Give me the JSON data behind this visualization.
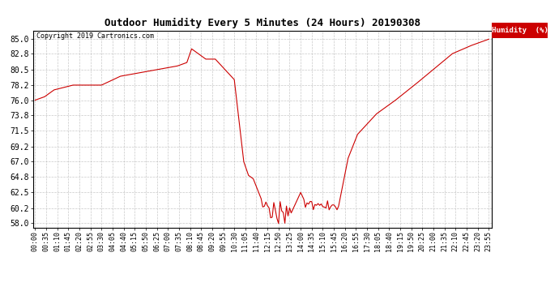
{
  "title": "Outdoor Humidity Every 5 Minutes (24 Hours) 20190308",
  "copyright_text": "Copyright 2019 Cartronics.com",
  "legend_label": "Humidity  (%)",
  "line_color": "#cc0000",
  "background_color": "#ffffff",
  "grid_color": "#bbbbbb",
  "yticks": [
    58.0,
    60.2,
    62.5,
    64.8,
    67.0,
    69.2,
    71.5,
    73.8,
    76.0,
    78.2,
    80.5,
    82.8,
    85.0
  ],
  "ylim": [
    57.3,
    86.2
  ],
  "time_labels": [
    "00:00",
    "00:35",
    "01:10",
    "01:45",
    "02:20",
    "02:55",
    "03:30",
    "04:05",
    "04:40",
    "05:15",
    "05:50",
    "06:25",
    "07:00",
    "07:35",
    "08:10",
    "08:45",
    "09:20",
    "09:55",
    "10:30",
    "11:05",
    "11:40",
    "12:15",
    "12:50",
    "13:25",
    "14:00",
    "14:35",
    "15:10",
    "15:45",
    "16:20",
    "16:55",
    "17:30",
    "18:05",
    "18:40",
    "19:15",
    "19:50",
    "20:25",
    "21:00",
    "21:35",
    "22:10",
    "22:45",
    "23:20",
    "23:55"
  ]
}
